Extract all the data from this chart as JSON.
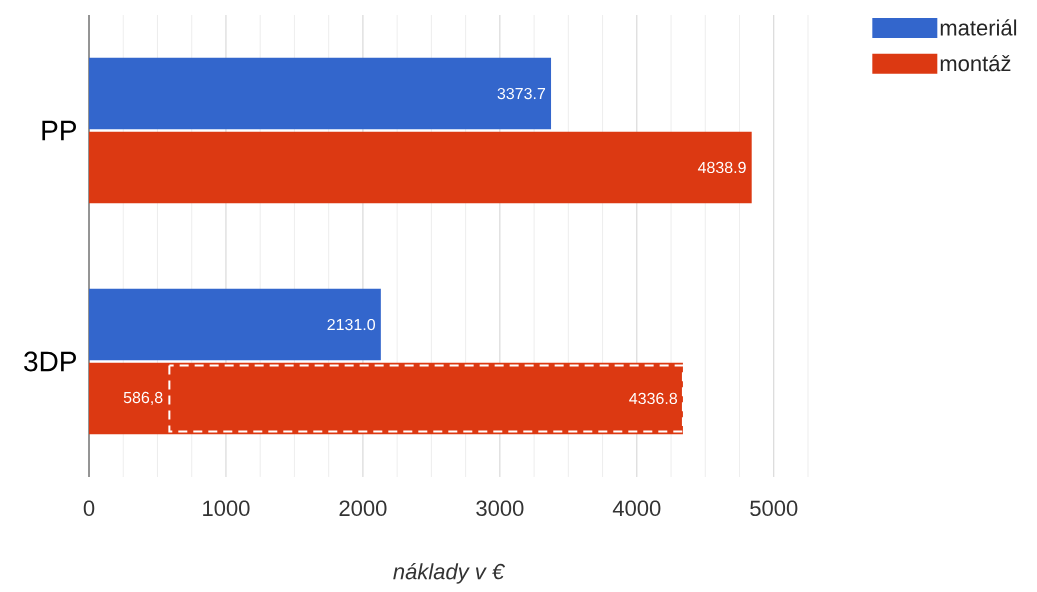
{
  "chart_data": {
    "type": "bar",
    "orientation": "horizontal",
    "categories": [
      "PP",
      "3DP"
    ],
    "series": [
      {
        "name": "materiál",
        "color": "#3366cc",
        "values": [
          3373.7,
          2131.0
        ],
        "value_labels": [
          "3373.7",
          "2131.0"
        ]
      },
      {
        "name": "montáž",
        "color": "#dc3912",
        "values": [
          4838.9,
          4336.8
        ],
        "value_labels": [
          "4838.9",
          "4336.8"
        ]
      }
    ],
    "xlabel": "náklady v €",
    "xlim": [
      0,
      5250
    ],
    "xticks": [
      0,
      {
        "value": 250,
        "label": null
      },
      {
        "value": 500,
        "label": null
      },
      {
        "value": 750,
        "label": null
      },
      1000,
      {
        "value": 1250,
        "label": null
      },
      {
        "value": 1500,
        "label": null
      },
      {
        "value": 1750,
        "label": null
      },
      2000,
      {
        "value": 2250,
        "label": null
      },
      {
        "value": 2500,
        "label": null
      },
      {
        "value": 2750,
        "label": null
      },
      3000,
      {
        "value": 3250,
        "label": null
      },
      {
        "value": 3500,
        "label": null
      },
      {
        "value": 3750,
        "label": null
      },
      4000,
      {
        "value": 4250,
        "label": null
      },
      {
        "value": 4500,
        "label": null
      },
      {
        "value": 4750,
        "label": null
      },
      5000,
      {
        "value": 5250,
        "label": null
      }
    ],
    "annotations": [
      {
        "text": "586,8",
        "x": 586.8,
        "y": "3DP"
      }
    ],
    "grid": "x",
    "legend": "top right"
  }
}
